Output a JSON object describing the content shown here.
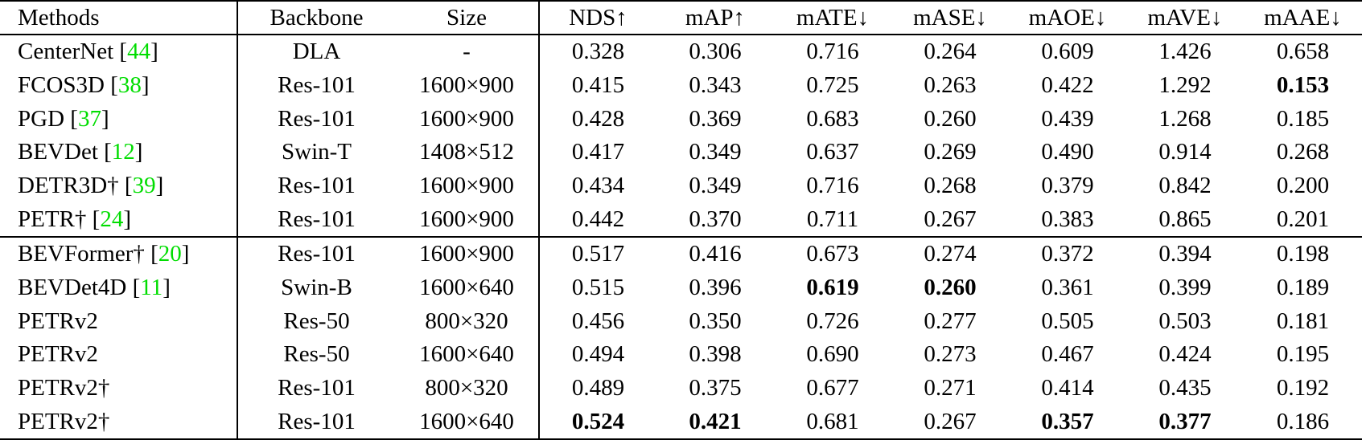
{
  "table": {
    "citation_color": "#00DD00",
    "header": {
      "methods": "Methods",
      "backbone": "Backbone",
      "size": "Size",
      "metrics": [
        "NDS↑",
        "mAP↑",
        "mATE↓",
        "mASE↓",
        "mAOE↓",
        "mAVE↓",
        "mAAE↓"
      ]
    },
    "groups": [
      {
        "rows": [
          {
            "method": "CenterNet",
            "cite": "44",
            "backbone": "DLA",
            "size": "-",
            "values": [
              "0.328",
              "0.306",
              "0.716",
              "0.264",
              "0.609",
              "1.426",
              "0.658"
            ],
            "bold": []
          },
          {
            "method": "FCOS3D",
            "cite": "38",
            "backbone": "Res-101",
            "size": "1600×900",
            "values": [
              "0.415",
              "0.343",
              "0.725",
              "0.263",
              "0.422",
              "1.292",
              "0.153"
            ],
            "bold": [
              6
            ]
          },
          {
            "method": "PGD",
            "cite": "37",
            "backbone": "Res-101",
            "size": "1600×900",
            "values": [
              "0.428",
              "0.369",
              "0.683",
              "0.260",
              "0.439",
              "1.268",
              "0.185"
            ],
            "bold": []
          },
          {
            "method": "BEVDet",
            "cite": "12",
            "backbone": "Swin-T",
            "size": "1408×512",
            "values": [
              "0.417",
              "0.349",
              "0.637",
              "0.269",
              "0.490",
              "0.914",
              "0.268"
            ],
            "bold": []
          },
          {
            "method": "DETR3D†",
            "cite": "39",
            "backbone": "Res-101",
            "size": "1600×900",
            "values": [
              "0.434",
              "0.349",
              "0.716",
              "0.268",
              "0.379",
              "0.842",
              "0.200"
            ],
            "bold": []
          },
          {
            "method": "PETR†",
            "cite": "24",
            "backbone": "Res-101",
            "size": "1600×900",
            "values": [
              "0.442",
              "0.370",
              "0.711",
              "0.267",
              "0.383",
              "0.865",
              "0.201"
            ],
            "bold": []
          }
        ]
      },
      {
        "rows": [
          {
            "method": "BEVFormer†",
            "cite": "20",
            "backbone": "Res-101",
            "size": "1600×900",
            "values": [
              "0.517",
              "0.416",
              "0.673",
              "0.274",
              "0.372",
              "0.394",
              "0.198"
            ],
            "bold": []
          },
          {
            "method": "BEVDet4D",
            "cite": "11",
            "backbone": "Swin-B",
            "size": "1600×640",
            "values": [
              "0.515",
              "0.396",
              "0.619",
              "0.260",
              "0.361",
              "0.399",
              "0.189"
            ],
            "bold": [
              2,
              3
            ]
          },
          {
            "method": "PETRv2",
            "cite": null,
            "backbone": "Res-50",
            "size": "800×320",
            "values": [
              "0.456",
              "0.350",
              "0.726",
              "0.277",
              "0.505",
              "0.503",
              "0.181"
            ],
            "bold": []
          },
          {
            "method": "PETRv2",
            "cite": null,
            "backbone": "Res-50",
            "size": "1600×640",
            "values": [
              "0.494",
              "0.398",
              "0.690",
              "0.273",
              "0.467",
              "0.424",
              "0.195"
            ],
            "bold": []
          },
          {
            "method": "PETRv2†",
            "cite": null,
            "backbone": "Res-101",
            "size": "800×320",
            "values": [
              "0.489",
              "0.375",
              "0.677",
              "0.271",
              "0.414",
              "0.435",
              "0.192"
            ],
            "bold": []
          },
          {
            "method": "PETRv2†",
            "cite": null,
            "backbone": "Res-101",
            "size": "1600×640",
            "values": [
              "0.524",
              "0.421",
              "0.681",
              "0.267",
              "0.357",
              "0.377",
              "0.186"
            ],
            "bold": [
              0,
              1,
              4,
              5
            ]
          }
        ]
      }
    ]
  }
}
